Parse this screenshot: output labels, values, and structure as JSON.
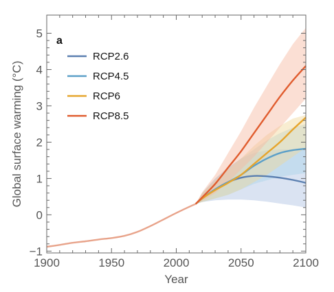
{
  "chart_data": {
    "type": "line",
    "panel_label": "a",
    "xlabel": "Year",
    "ylabel": "Global surface warming (°C)",
    "xlim": [
      1900,
      2100
    ],
    "ylim": [
      -1.05,
      5.5
    ],
    "x_ticks": [
      1900,
      1950,
      2000,
      2050,
      2100
    ],
    "y_ticks": [
      -1,
      0,
      1,
      2,
      3,
      4,
      5
    ],
    "grid": false,
    "legend_position": "top-left",
    "historical": {
      "x": [
        1900,
        1910,
        1920,
        1930,
        1940,
        1950,
        1960,
        1970,
        1980,
        1990,
        2000,
        2010,
        2015
      ],
      "y": [
        -0.88,
        -0.83,
        -0.77,
        -0.73,
        -0.68,
        -0.64,
        -0.58,
        -0.47,
        -0.31,
        -0.13,
        0.05,
        0.22,
        0.3
      ]
    },
    "series": [
      {
        "name": "RCP2.6",
        "color": "#5a7fb0",
        "band_color": "#aec2e3",
        "x": [
          2015,
          2020,
          2030,
          2040,
          2050,
          2060,
          2070,
          2080,
          2090,
          2100
        ],
        "y": [
          0.3,
          0.45,
          0.7,
          0.9,
          1.02,
          1.07,
          1.06,
          1.02,
          0.96,
          0.88
        ],
        "lower": [
          0.3,
          0.35,
          0.4,
          0.42,
          0.42,
          0.4,
          0.36,
          0.31,
          0.26,
          0.2
        ],
        "upper": [
          0.3,
          0.6,
          1.0,
          1.3,
          1.55,
          1.7,
          1.78,
          1.8,
          1.8,
          1.78
        ]
      },
      {
        "name": "RCP4.5",
        "color": "#5b9fc8",
        "band_color": "#a9d2e8",
        "x": [
          2015,
          2020,
          2030,
          2040,
          2050,
          2060,
          2070,
          2080,
          2090,
          2100
        ],
        "y": [
          0.3,
          0.45,
          0.7,
          0.9,
          1.1,
          1.35,
          1.55,
          1.7,
          1.78,
          1.82
        ],
        "lower": [
          0.3,
          0.35,
          0.45,
          0.55,
          0.7,
          0.85,
          0.95,
          1.05,
          1.1,
          1.15
        ],
        "upper": [
          0.3,
          0.6,
          1.0,
          1.3,
          1.55,
          1.8,
          2.05,
          2.25,
          2.4,
          2.5
        ]
      },
      {
        "name": "RCP6",
        "color": "#e6a52c",
        "band_color": "#f0d79a",
        "x": [
          2015,
          2020,
          2030,
          2040,
          2050,
          2060,
          2070,
          2080,
          2090,
          2100
        ],
        "y": [
          0.3,
          0.45,
          0.68,
          0.88,
          1.1,
          1.4,
          1.7,
          2.0,
          2.35,
          2.68
        ],
        "lower": [
          0.3,
          0.35,
          0.45,
          0.55,
          0.7,
          0.9,
          1.1,
          1.35,
          1.6,
          1.85
        ],
        "upper": [
          0.3,
          0.6,
          0.95,
          1.25,
          1.55,
          1.9,
          2.2,
          2.45,
          2.65,
          2.75
        ]
      },
      {
        "name": "RCP8.5",
        "color": "#e05c2e",
        "band_color": "#f6b9a0",
        "x": [
          2015,
          2020,
          2030,
          2040,
          2050,
          2060,
          2070,
          2080,
          2090,
          2100
        ],
        "y": [
          0.3,
          0.48,
          0.85,
          1.3,
          1.75,
          2.25,
          2.75,
          3.25,
          3.7,
          4.1
        ],
        "lower": [
          0.3,
          0.38,
          0.6,
          0.9,
          1.25,
          1.6,
          2.0,
          2.4,
          2.8,
          3.2
        ],
        "upper": [
          0.3,
          0.62,
          1.1,
          1.7,
          2.3,
          2.95,
          3.55,
          4.15,
          4.7,
          5.15
        ]
      }
    ]
  }
}
